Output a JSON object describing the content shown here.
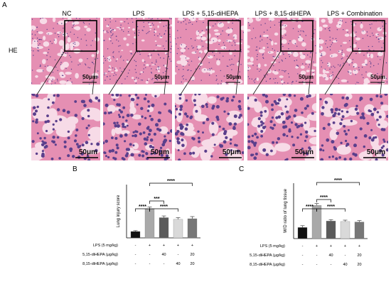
{
  "panel_labels": {
    "a": "A",
    "b": "B",
    "c": "C"
  },
  "row_label": "HE",
  "groups": [
    "NC",
    "LPS",
    "LPS + 5,15-diHEPA",
    "LPS + 8,15-diHEPA",
    "LPS + Combination"
  ],
  "scale_bar": "50μm",
  "colors": {
    "nc": "#111111",
    "lps": "#a9a9a9",
    "diHEPA515": "#5a5a5a",
    "diHEPA815": "#d9d9d9",
    "combination": "#777777",
    "tissue_pink": "#e58fb3",
    "nuclei": "#5b3f8c",
    "background_pink": "#f7dbe7"
  },
  "treatment_rows": [
    {
      "label": "LPS (5 mg/kg)",
      "values": [
        "-",
        "+",
        "+",
        "+",
        "+"
      ]
    },
    {
      "label": "5,15-diHEPA (μg/kg)",
      "values": [
        "-",
        "-",
        "40",
        "-",
        "20"
      ]
    },
    {
      "label": "8,15-diHEPA (μg/kg)",
      "values": [
        "-",
        "-",
        "-",
        "40",
        "20"
      ]
    }
  ],
  "chart_data": [
    {
      "type": "bar",
      "categories": [
        "NC",
        "LPS",
        "LPS + 5,15-diHEPA",
        "LPS + 8,15-diHEPA",
        "LPS + Combination"
      ],
      "values": [
        3.0,
        13.5,
        9.5,
        8.7,
        9.0
      ],
      "errors": [
        0.4,
        1.0,
        0.8,
        0.8,
        1.0
      ],
      "ylabel": "Lung injury score",
      "ylim": [
        0,
        25
      ],
      "significance": [
        "****",
        "***",
        "****",
        "****"
      ],
      "colors": [
        "#111111",
        "#a9a9a9",
        "#5a5a5a",
        "#d9d9d9",
        "#777777"
      ]
    },
    {
      "type": "bar",
      "categories": [
        "NC",
        "LPS",
        "LPS + 5,15-diHEPA",
        "LPS + 8,15-diHEPA",
        "LPS + Combination"
      ],
      "values": [
        2.4,
        7.2,
        3.8,
        3.7,
        3.6
      ],
      "errors": [
        0.4,
        0.4,
        0.3,
        0.3,
        0.3
      ],
      "ylabel": "W/D ratio of lung tissue",
      "ylim": [
        0,
        12
      ],
      "significance": [
        "****",
        "****",
        "****",
        "****"
      ],
      "colors": [
        "#111111",
        "#a9a9a9",
        "#5a5a5a",
        "#d9d9d9",
        "#777777"
      ]
    }
  ]
}
